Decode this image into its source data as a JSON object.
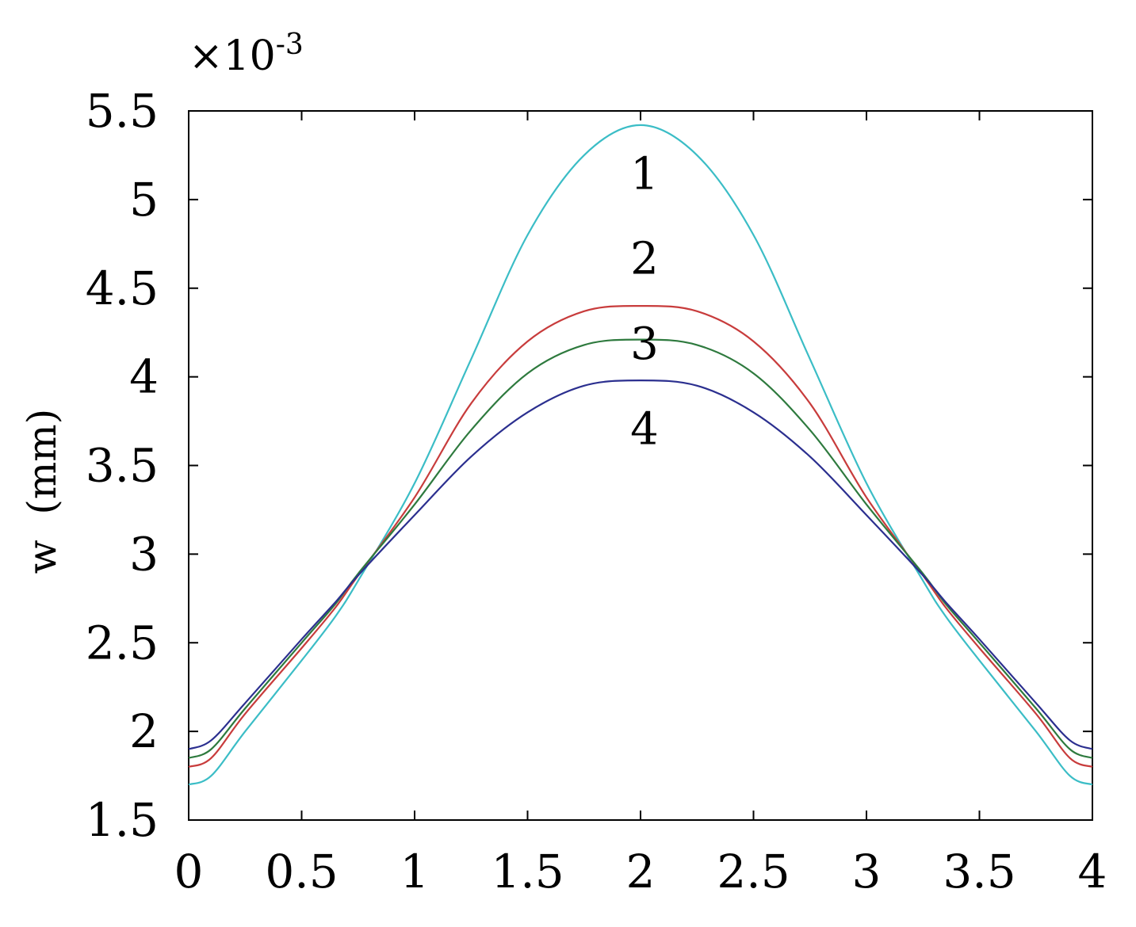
{
  "chart_data": {
    "type": "line",
    "title": "",
    "xlabel": "",
    "ylabel": "w  (mm)",
    "y_scale_label": "×10",
    "y_scale_exponent": "-3",
    "xlim": [
      0,
      4
    ],
    "ylim": [
      1.5,
      5.5
    ],
    "x_ticks": [
      "0",
      "0.5",
      "1",
      "1.5",
      "2",
      "2.5",
      "3",
      "3.5",
      "4"
    ],
    "y_ticks": [
      "1.5",
      "2",
      "2.5",
      "3",
      "3.5",
      "4",
      "4.5",
      "5",
      "5.5"
    ],
    "grid": false,
    "series": [
      {
        "name": "1",
        "color": "#3bbdc6",
        "x": [
          0,
          0.1,
          0.25,
          0.5,
          0.65,
          0.75,
          1.0,
          1.25,
          1.5,
          1.75,
          2.0,
          2.25,
          2.5,
          2.75,
          3.0,
          3.25,
          3.35,
          3.5,
          3.75,
          3.9,
          4.0
        ],
        "values": [
          1.7,
          1.75,
          2.0,
          2.4,
          2.65,
          2.85,
          3.4,
          4.1,
          4.8,
          5.25,
          5.42,
          5.25,
          4.8,
          4.1,
          3.4,
          2.85,
          2.65,
          2.4,
          2.0,
          1.75,
          1.7
        ]
      },
      {
        "name": "2",
        "color": "#c83c3c",
        "x": [
          0,
          0.1,
          0.25,
          0.5,
          0.65,
          0.75,
          1.0,
          1.25,
          1.5,
          1.75,
          2.0,
          2.25,
          2.5,
          2.75,
          3.0,
          3.25,
          3.35,
          3.5,
          3.75,
          3.9,
          4.0
        ],
        "values": [
          1.8,
          1.85,
          2.1,
          2.47,
          2.7,
          2.88,
          3.32,
          3.85,
          4.2,
          4.37,
          4.4,
          4.37,
          4.2,
          3.85,
          3.32,
          2.88,
          2.7,
          2.47,
          2.1,
          1.85,
          1.8
        ]
      },
      {
        "name": "3",
        "color": "#2e7a3e",
        "x": [
          0,
          0.1,
          0.25,
          0.5,
          0.65,
          0.75,
          1.0,
          1.25,
          1.5,
          1.75,
          2.0,
          2.25,
          2.5,
          2.75,
          3.0,
          3.25,
          3.35,
          3.5,
          3.75,
          3.9,
          4.0
        ],
        "values": [
          1.85,
          1.9,
          2.13,
          2.5,
          2.72,
          2.89,
          3.28,
          3.7,
          4.02,
          4.18,
          4.21,
          4.18,
          4.02,
          3.7,
          3.28,
          2.89,
          2.72,
          2.5,
          2.13,
          1.9,
          1.85
        ]
      },
      {
        "name": "4",
        "color": "#2b2f8f",
        "x": [
          0,
          0.1,
          0.25,
          0.5,
          0.65,
          0.75,
          1.0,
          1.25,
          1.5,
          1.75,
          2.0,
          2.25,
          2.5,
          2.75,
          3.0,
          3.25,
          3.35,
          3.5,
          3.75,
          3.9,
          4.0
        ],
        "values": [
          1.9,
          1.95,
          2.16,
          2.52,
          2.73,
          2.88,
          3.22,
          3.55,
          3.8,
          3.95,
          3.98,
          3.95,
          3.8,
          3.55,
          3.22,
          2.88,
          2.73,
          2.52,
          2.16,
          1.95,
          1.9
        ]
      }
    ],
    "curve_labels": [
      {
        "text": "1",
        "x": 2.0,
        "y": 5.15
      },
      {
        "text": "2",
        "x": 2.0,
        "y": 4.67
      },
      {
        "text": "3",
        "x": 2.0,
        "y": 4.19
      },
      {
        "text": "4",
        "x": 2.0,
        "y": 3.71
      }
    ]
  }
}
